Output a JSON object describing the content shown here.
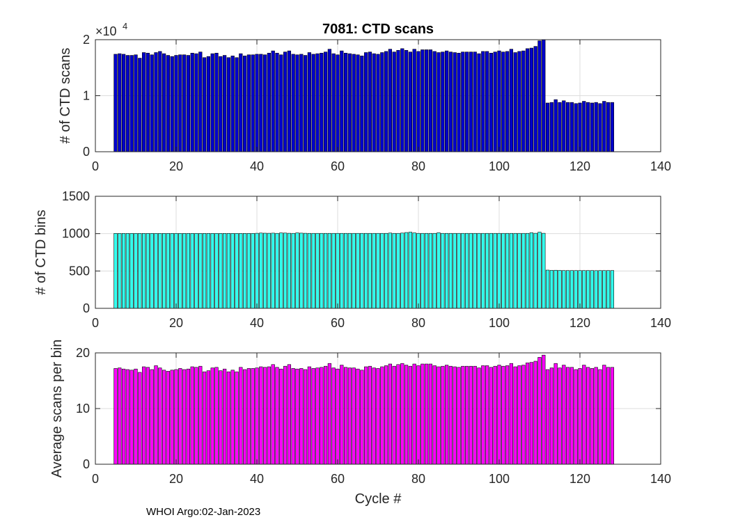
{
  "title": "7081: CTD scans",
  "footer": "WHOI Argo:02-Jan-2023",
  "colors": {
    "axis": "#262626",
    "grid": "#dcdcdc",
    "bar_edge": "#000000"
  },
  "chart_data": [
    {
      "type": "bar",
      "title": "7081: CTD scans",
      "xlabel": "",
      "ylabel": "# of CTD scans",
      "exponent_label": "×10",
      "exponent_power": "4",
      "xlim": [
        0,
        140
      ],
      "ylim": [
        0,
        20000
      ],
      "xticks": [
        0,
        20,
        40,
        60,
        80,
        100,
        120,
        140
      ],
      "yticks": [
        0,
        10000,
        20000
      ],
      "ytick_labels": [
        "0",
        "1",
        "2"
      ],
      "grid": true,
      "color": "#0000cc",
      "x_start": 5,
      "values": [
        17400,
        17500,
        17400,
        17200,
        17200,
        17300,
        16700,
        17700,
        17600,
        17300,
        17700,
        17900,
        17500,
        17200,
        17000,
        17200,
        17300,
        17300,
        17200,
        17600,
        17500,
        17800,
        16800,
        17000,
        17500,
        17600,
        17000,
        17200,
        16800,
        17100,
        16800,
        17500,
        17100,
        17300,
        17300,
        17400,
        17400,
        17300,
        17600,
        18000,
        17600,
        17300,
        17800,
        18000,
        17400,
        17300,
        17400,
        17200,
        17700,
        17400,
        17500,
        17600,
        17800,
        18300,
        17500,
        17300,
        18000,
        17600,
        17500,
        17400,
        17300,
        17100,
        17700,
        17800,
        17500,
        17400,
        17700,
        17900,
        18300,
        17800,
        18100,
        18400,
        18100,
        17800,
        18300,
        17900,
        18200,
        18200,
        18200,
        17900,
        17700,
        17800,
        18000,
        17800,
        17700,
        17600,
        17800,
        17800,
        17800,
        17800,
        17500,
        17900,
        17900,
        17600,
        17800,
        18000,
        17800,
        17900,
        18300,
        17700,
        17900,
        18000,
        18400,
        18500,
        18800,
        19800,
        20000,
        8700,
        8800,
        9300,
        8800,
        9100,
        8800,
        8800,
        8600,
        8700,
        9000,
        8800,
        8700,
        8800,
        8600,
        9000,
        8800,
        8800
      ]
    },
    {
      "type": "bar",
      "title": "",
      "xlabel": "",
      "ylabel": "# of CTD bins",
      "xlim": [
        0,
        140
      ],
      "ylim": [
        0,
        1500
      ],
      "xticks": [
        0,
        20,
        40,
        60,
        80,
        100,
        120,
        140
      ],
      "yticks": [
        0,
        500,
        1000,
        1500
      ],
      "ytick_labels": [
        "0",
        "500",
        "1000",
        "1500"
      ],
      "grid": true,
      "color": "#33ffee",
      "x_start": 5,
      "values": [
        1003,
        1003,
        1003,
        1003,
        1003,
        1003,
        1003,
        1003,
        1003,
        1003,
        1003,
        1003,
        1003,
        1003,
        1003,
        1003,
        1003,
        1003,
        1003,
        1003,
        1003,
        1003,
        1003,
        1003,
        1003,
        1003,
        1003,
        1003,
        1003,
        1003,
        1003,
        1003,
        1003,
        1003,
        1003,
        1005,
        1008,
        1006,
        1005,
        1007,
        1004,
        1010,
        1008,
        1005,
        1004,
        1010,
        1007,
        1005,
        1004,
        1004,
        1004,
        1004,
        1004,
        1004,
        1004,
        1004,
        1004,
        1004,
        1004,
        1004,
        1004,
        1004,
        1004,
        1004,
        1004,
        1004,
        1004,
        1004,
        1008,
        1004,
        1004,
        1008,
        1015,
        1020,
        1010,
        1004,
        1004,
        1004,
        1004,
        1004,
        1012,
        1004,
        1004,
        1004,
        1004,
        1004,
        1004,
        1004,
        1004,
        1004,
        1004,
        1004,
        1004,
        1004,
        1004,
        1004,
        1004,
        1004,
        1004,
        1004,
        1004,
        1004,
        1004,
        1012,
        1005,
        1020,
        1005,
        512,
        508,
        510,
        508,
        506,
        506,
        506,
        506,
        506,
        506,
        506,
        506,
        505,
        506,
        506,
        506,
        506
      ]
    },
    {
      "type": "bar",
      "title": "",
      "xlabel": "Cycle #",
      "ylabel": "Average scans per bin",
      "xlim": [
        0,
        140
      ],
      "ylim": [
        0,
        20
      ],
      "xticks": [
        0,
        20,
        40,
        60,
        80,
        100,
        120,
        140
      ],
      "yticks": [
        0,
        10,
        20
      ],
      "ytick_labels": [
        "0",
        "10",
        "20"
      ],
      "grid": true,
      "color": "#ff00ff",
      "x_start": 5,
      "values": [
        17.2,
        17.3,
        17.1,
        17.0,
        16.9,
        17.1,
        16.5,
        17.5,
        17.4,
        17.0,
        17.7,
        17.3,
        16.9,
        16.7,
        16.9,
        17.0,
        17.2,
        17.0,
        17.1,
        17.5,
        17.4,
        17.6,
        16.6,
        16.8,
        17.3,
        17.4,
        16.8,
        17.1,
        16.6,
        16.9,
        16.6,
        17.4,
        17.0,
        17.2,
        17.2,
        17.3,
        17.5,
        17.4,
        17.5,
        17.9,
        17.4,
        17.1,
        17.6,
        17.9,
        17.2,
        17.1,
        17.2,
        17.0,
        17.5,
        17.2,
        17.3,
        17.4,
        17.6,
        18.1,
        17.3,
        17.1,
        17.8,
        17.4,
        17.3,
        17.3,
        17.1,
        16.9,
        17.5,
        17.6,
        17.3,
        17.2,
        17.5,
        17.7,
        18.0,
        17.6,
        17.9,
        18.1,
        17.8,
        17.6,
        18.0,
        17.7,
        18.0,
        18.0,
        18.0,
        17.7,
        17.5,
        17.6,
        17.8,
        17.6,
        17.5,
        17.4,
        17.6,
        17.6,
        17.6,
        17.6,
        17.3,
        17.7,
        17.7,
        17.4,
        17.6,
        17.8,
        17.6,
        17.7,
        18.1,
        17.5,
        17.7,
        17.8,
        18.2,
        18.3,
        18.5,
        19.2,
        19.6,
        17.0,
        17.3,
        18.1,
        17.3,
        17.8,
        17.4,
        17.4,
        17.0,
        17.2,
        17.8,
        17.4,
        17.2,
        17.4,
        17.0,
        17.8,
        17.4,
        17.4
      ]
    }
  ]
}
